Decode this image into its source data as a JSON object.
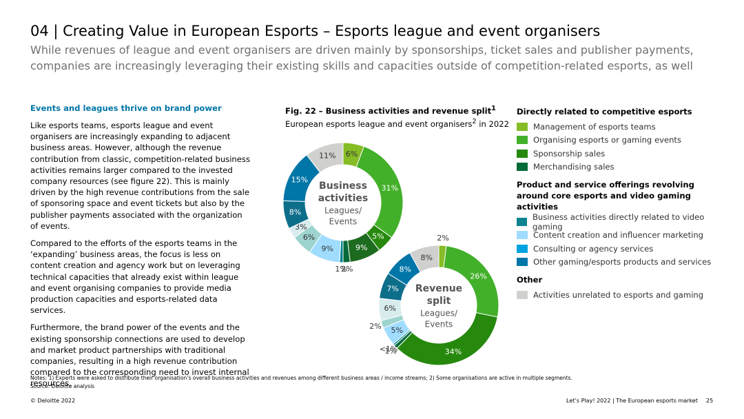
{
  "header": {
    "title": "04 | Creating Value in European Esports – Esports league and event organisers",
    "subtitle": "While revenues of league and event organisers are driven mainly by sponsorships, ticket sales and publisher payments, companies are increasingly leveraging their existing skills and capacities outside of competition-related esports, as well"
  },
  "body": {
    "heading": "Events and leagues thrive on brand power",
    "paragraphs": [
      "Like esports teams, esports league and event organisers are increasingly expanding to adjacent business areas. However, although the revenue contribution from classic, competition-related business activities remains larger compared to the invested company resources (see figure 22). This is mainly driven by the high revenue contributions from the sale of sponsoring space and event tickets but also by the publisher payments associated with the organization of events.",
      "Compared to the efforts of the esports teams in the ‘expanding’ business areas, the focus is less on content creation and agency work but on leveraging technical capacities that already exist within league and event organising companies to provide media production capacities and esports-related data services.",
      "Furthermore, the brand power of the events and the existing sponsorship connections are used to develop and market product partnerships with traditional companies, resulting in a high revenue contribution compared to the corresponding need to invest internal resources."
    ]
  },
  "figure": {
    "title": "Fig. 22 – Business activities and revenue split",
    "title_sup": "1",
    "subtitle": "European esports league and event organisers",
    "subtitle_sup": "2",
    "subtitle_end": " in 2022"
  },
  "chart_data": [
    {
      "type": "donut",
      "center_title": [
        "Business",
        "activities"
      ],
      "center_subtitle": [
        "Leagues/",
        "Events"
      ],
      "values": [
        6,
        31,
        5,
        9,
        2,
        1,
        9,
        6,
        3,
        8,
        15,
        11
      ],
      "value_labels": [
        "6%",
        "31%",
        "5%",
        "9%",
        "2%",
        "1%",
        "9%",
        "6%",
        "3%",
        "8%",
        "15%",
        "11%"
      ],
      "colors": [
        "#86bc25",
        "#43b02a",
        "#26890d",
        "#1d6b1f",
        "#046a38",
        "#0d8390",
        "#a0dcff",
        "#9dd4cf",
        "#d8ecee",
        "#0d6e8a",
        "#0076a8",
        "#d0d0ce"
      ]
    },
    {
      "type": "donut",
      "center_title": [
        "Revenue",
        "split"
      ],
      "center_subtitle": [
        "Leagues/",
        "Events"
      ],
      "values": [
        2,
        26,
        34,
        1,
        0.5,
        5,
        2,
        6,
        7,
        8,
        8
      ],
      "value_labels": [
        "2%",
        "26%",
        "34%",
        "1%",
        "<1%",
        "5%",
        "2%",
        "6%",
        "7%",
        "8%",
        "8%"
      ],
      "colors": [
        "#86bc25",
        "#43b02a",
        "#26890d",
        "#046a38",
        "#0d8390",
        "#a0dcff",
        "#9dd4cf",
        "#d8ecee",
        "#0d6e8a",
        "#0076a8",
        "#d0d0ce"
      ]
    }
  ],
  "legend": [
    {
      "heading": "Directly related to competitive esports",
      "items": [
        {
          "label": "Management of esports teams",
          "color": "#86bc25"
        },
        {
          "label": "Organising esports or gaming events",
          "color": "#43b02a"
        },
        {
          "label": "Sponsorship sales",
          "color": "#26890d"
        },
        {
          "label": "Merchandising sales",
          "color": "#046a38"
        }
      ]
    },
    {
      "heading": "Product and service offerings revolving around core esports and video gaming activities",
      "items": [
        {
          "label": "Business activities directly related to video gaming",
          "color": "#0d8390"
        },
        {
          "label": "Content creation and influencer marketing",
          "color": "#a0dcff"
        },
        {
          "label": "Consulting or agency services",
          "color": "#00a3e0"
        },
        {
          "label": "Other gaming/esports products and services",
          "color": "#0076a8"
        }
      ]
    },
    {
      "heading": "Other",
      "items": [
        {
          "label": "Activities unrelated to esports and gaming",
          "color": "#d0d0ce"
        }
      ]
    }
  ],
  "notes": [
    "Notes: 1) Experts were asked to distribute their organisation’s overall business activities and revenues among different business areas / income streams; 2) Some organisations are active in multiple segments.",
    "Source: Deloitte analysis"
  ],
  "footer": {
    "left": "© Deloitte 2022",
    "right": "Let’s Play! 2022 | The European esports market",
    "page": "25"
  }
}
